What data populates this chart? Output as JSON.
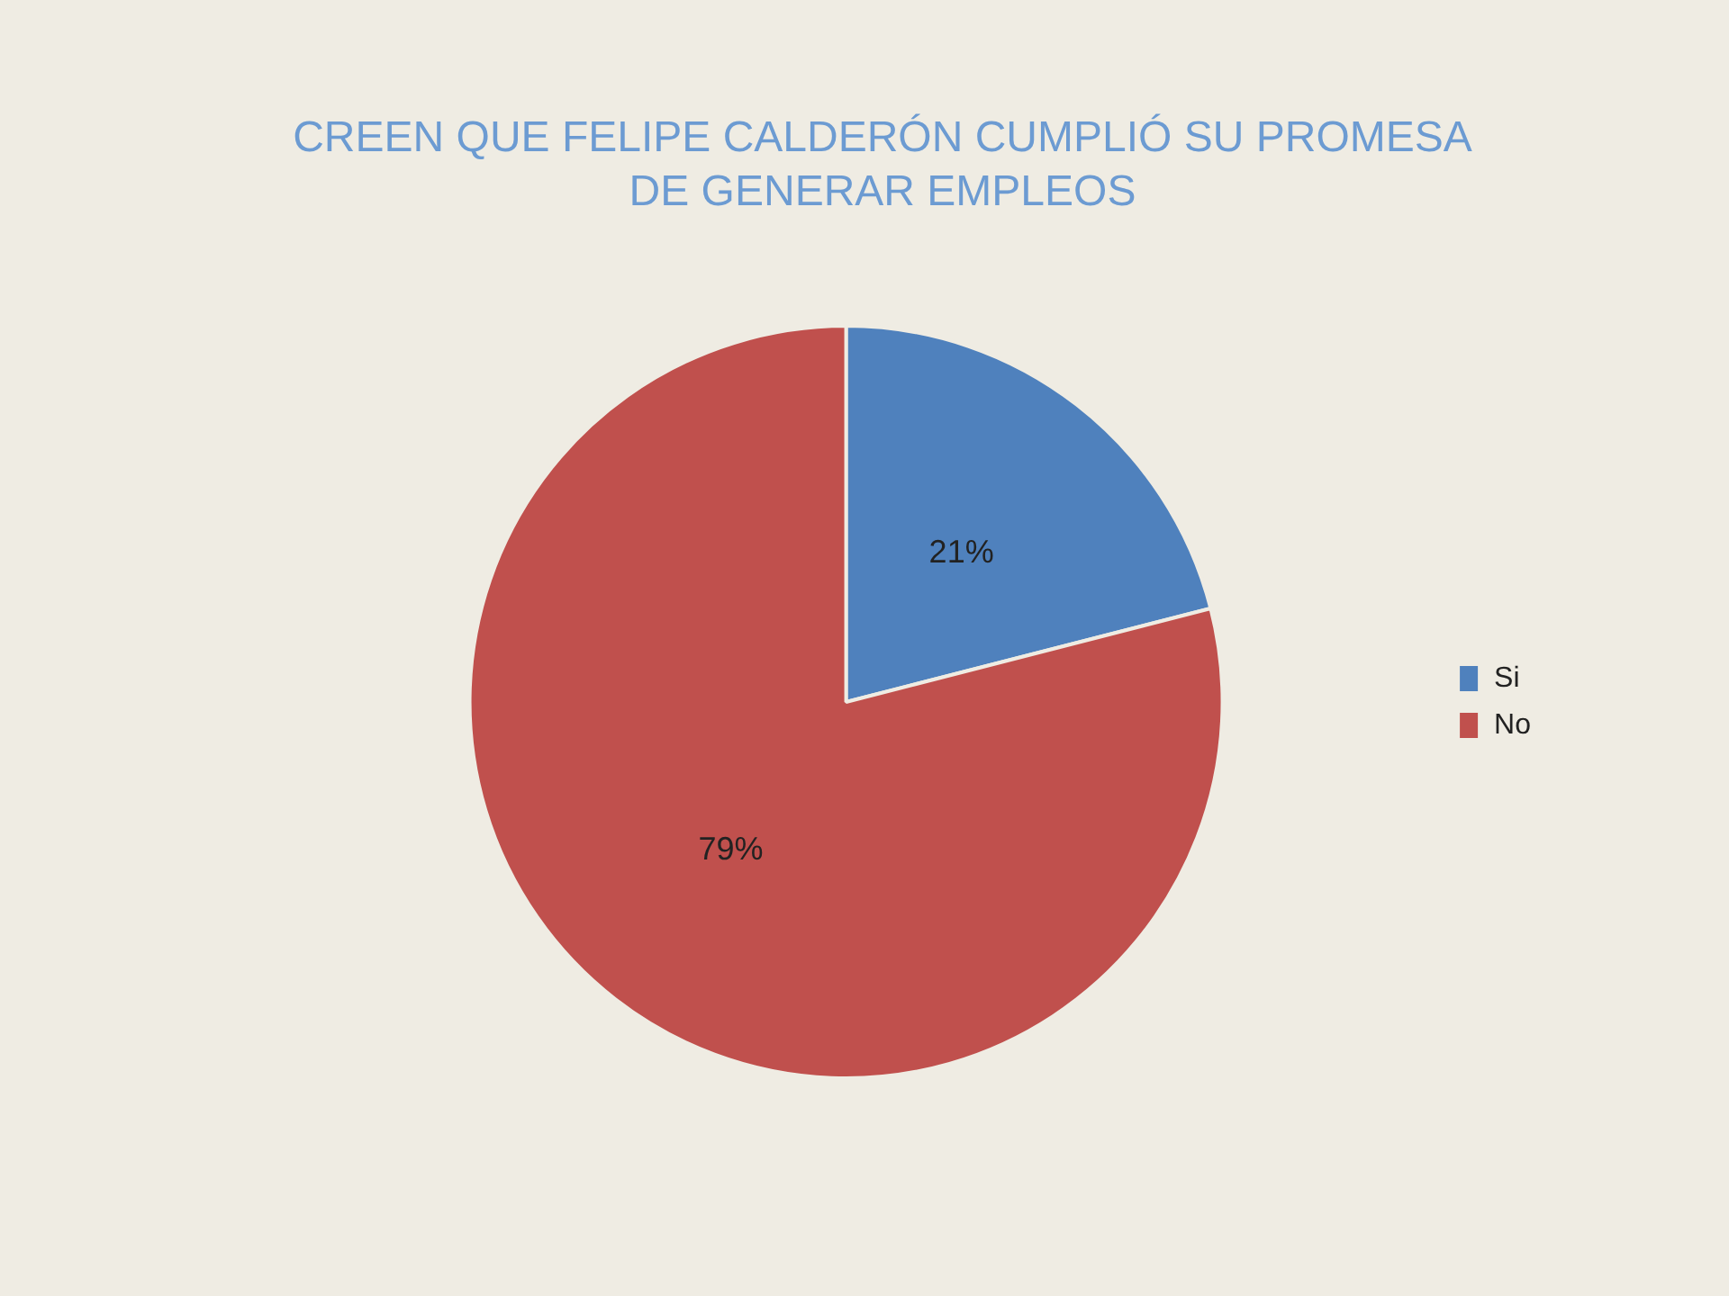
{
  "chart_data": {
    "type": "pie",
    "title": "CREEN QUE FELIPE CALDERÓN CUMPLIÓ SU PROMESA DE GENERAR EMPLEOS",
    "categories": [
      "Si",
      "No"
    ],
    "values": [
      21,
      79
    ],
    "colors": [
      "#4f81bd",
      "#c0504d"
    ],
    "value_labels": [
      "21%",
      "79%"
    ],
    "legend": "right"
  }
}
